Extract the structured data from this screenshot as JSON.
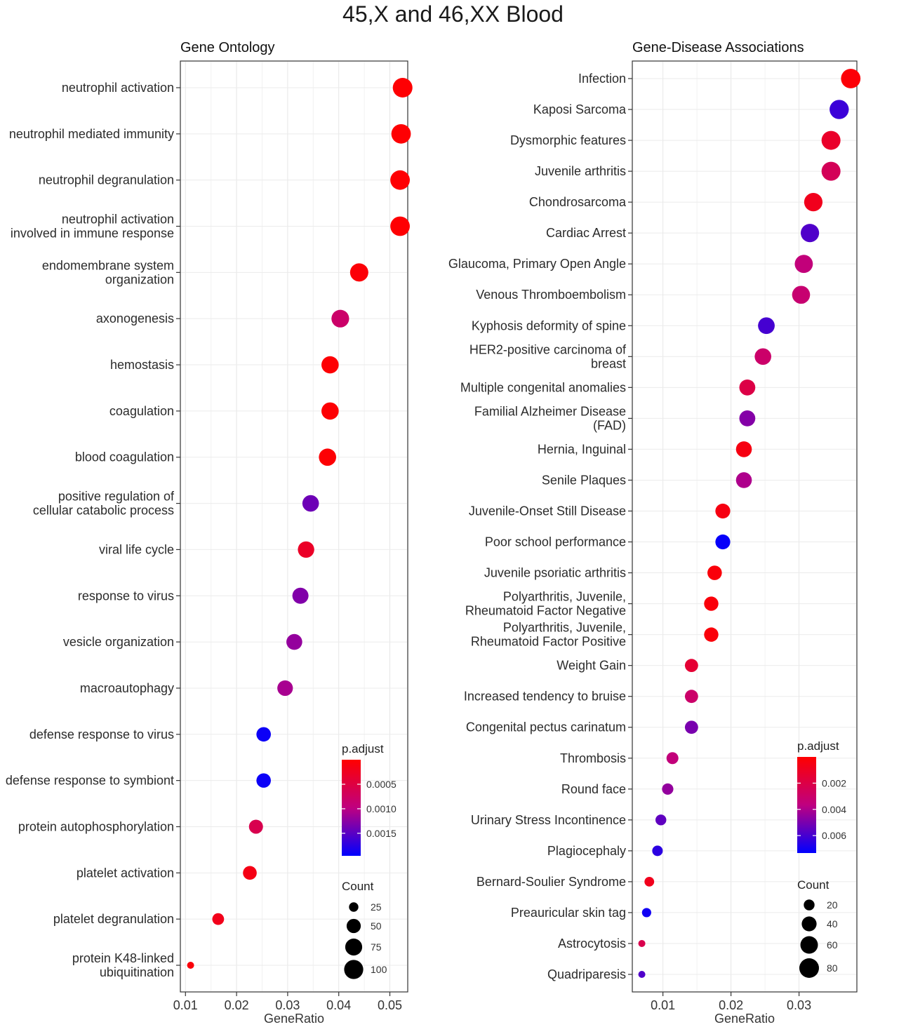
{
  "title": "45,X and 46,XX Blood",
  "chart_data": [
    {
      "type": "scatter",
      "title": "Gene Ontology",
      "xlabel": "GeneRatio",
      "ylabel": "",
      "xlim": [
        0.009,
        0.0535
      ],
      "xticks": [
        0.01,
        0.02,
        0.03,
        0.04,
        0.05
      ],
      "xtick_labels": [
        "0.01",
        "0.02",
        "0.03",
        "0.04",
        "0.05"
      ],
      "grid": true,
      "categories": [
        [
          "neutrophil activation"
        ],
        [
          "neutrophil mediated immunity"
        ],
        [
          "neutrophil degranulation"
        ],
        [
          "neutrophil activation",
          "involved in immune response"
        ],
        [
          "endomembrane system",
          "organization"
        ],
        [
          "axonogenesis"
        ],
        [
          "hemostasis"
        ],
        [
          "coagulation"
        ],
        [
          "blood coagulation"
        ],
        [
          "positive regulation of",
          "cellular catabolic process"
        ],
        [
          "viral life cycle"
        ],
        [
          "response to virus"
        ],
        [
          "vesicle organization"
        ],
        [
          "macroautophagy"
        ],
        [
          "defense response to virus"
        ],
        [
          "defense response to symbiont"
        ],
        [
          "protein autophosphorylation"
        ],
        [
          "platelet activation"
        ],
        [
          "platelet degranulation"
        ],
        [
          "protein K48-linked",
          "ubiquitination"
        ]
      ],
      "gene_ratio": [
        0.0525,
        0.0522,
        0.052,
        0.052,
        0.044,
        0.0403,
        0.0383,
        0.0383,
        0.0378,
        0.0345,
        0.0336,
        0.0325,
        0.0313,
        0.0295,
        0.0253,
        0.0253,
        0.0238,
        0.0226,
        0.0164,
        0.011
      ],
      "count": [
        108,
        107,
        106,
        106,
        90,
        83,
        79,
        79,
        78,
        71,
        69,
        67,
        64,
        61,
        52,
        52,
        49,
        46,
        34,
        22
      ],
      "p_adjust": [
        2e-05,
        2e-05,
        2e-05,
        2e-05,
        5e-05,
        0.0008,
        3e-05,
        3e-05,
        3e-05,
        0.0014,
        0.0003,
        0.0013,
        0.0012,
        0.0011,
        0.0019,
        0.0019,
        0.0006,
        0.00015,
        0.0002,
        8e-05
      ],
      "legend_color": {
        "title": "p.adjust",
        "low_color": "#ff0000",
        "high_color": "#0000ff",
        "range": [
          0.0,
          0.00196
        ],
        "ticks": [
          0.0005,
          0.001,
          0.0015
        ],
        "tick_labels": [
          "0.0005",
          "0.0010",
          "0.0015"
        ]
      },
      "legend_size": {
        "title": "Count",
        "values": [
          25,
          50,
          75,
          100
        ],
        "labels": [
          "25",
          "50",
          "75",
          "100"
        ]
      },
      "legend_position": "bottom-right"
    },
    {
      "type": "scatter",
      "title": "Gene-Disease Associations",
      "xlabel": "GeneRatio",
      "ylabel": "",
      "xlim": [
        0.0055,
        0.0385
      ],
      "xticks": [
        0.01,
        0.02,
        0.03
      ],
      "xtick_labels": [
        "0.01",
        "0.02",
        "0.03"
      ],
      "grid": true,
      "categories": [
        [
          "Infection"
        ],
        [
          "Kaposi Sarcoma"
        ],
        [
          "Dysmorphic features"
        ],
        [
          "Juvenile arthritis"
        ],
        [
          "Chondrosarcoma"
        ],
        [
          "Cardiac Arrest"
        ],
        [
          "Glaucoma, Primary Open Angle"
        ],
        [
          "Venous Thromboembolism"
        ],
        [
          "Kyphosis deformity of spine"
        ],
        [
          "HER2-positive carcinoma of",
          "breast"
        ],
        [
          "Multiple congenital anomalies"
        ],
        [
          "Familial Alzheimer Disease",
          "(FAD)"
        ],
        [
          "Hernia, Inguinal"
        ],
        [
          "Senile Plaques"
        ],
        [
          "Juvenile-Onset Still Disease"
        ],
        [
          "Poor school performance"
        ],
        [
          "Juvenile psoriatic arthritis"
        ],
        [
          "Polyarthritis, Juvenile,",
          "Rheumatoid Factor Negative"
        ],
        [
          "Polyarthritis, Juvenile,",
          "Rheumatoid Factor Positive"
        ],
        [
          "Weight Gain"
        ],
        [
          "Increased tendency to bruise"
        ],
        [
          "Congenital pectus carinatum"
        ],
        [
          "Thrombosis"
        ],
        [
          "Round face"
        ],
        [
          "Urinary Stress Incontinence"
        ],
        [
          "Plagiocephaly"
        ],
        [
          "Bernard-Soulier Syndrome"
        ],
        [
          "Preauricular skin tag"
        ],
        [
          "Astrocytosis"
        ],
        [
          "Quadriparesis"
        ]
      ],
      "gene_ratio": [
        0.0376,
        0.0359,
        0.0347,
        0.0347,
        0.0321,
        0.0316,
        0.0307,
        0.0303,
        0.0252,
        0.0247,
        0.0224,
        0.0224,
        0.0219,
        0.0219,
        0.0188,
        0.0188,
        0.0176,
        0.0171,
        0.0171,
        0.0142,
        0.0142,
        0.0142,
        0.0114,
        0.0107,
        0.0097,
        0.0092,
        0.008,
        0.0076,
        0.0069,
        0.0069
      ],
      "count": [
        79,
        76,
        73,
        73,
        68,
        67,
        65,
        64,
        53,
        52,
        47,
        47,
        46,
        46,
        40,
        40,
        37,
        36,
        36,
        30,
        30,
        30,
        24,
        22,
        20,
        19,
        17,
        16,
        14,
        14
      ],
      "p_adjust": [
        0.0002,
        0.0062,
        0.0012,
        0.0025,
        0.0008,
        0.0058,
        0.0035,
        0.0032,
        0.006,
        0.003,
        0.002,
        0.0048,
        0.0005,
        0.004,
        0.0005,
        0.0072,
        0.0003,
        0.0003,
        0.0003,
        0.0015,
        0.003,
        0.005,
        0.0035,
        0.0045,
        0.0055,
        0.0065,
        0.0008,
        0.007,
        0.0022,
        0.0058
      ],
      "legend_color": {
        "title": "p.adjust",
        "low_color": "#ff0000",
        "high_color": "#0000ff",
        "range": [
          0.0,
          0.00733
        ],
        "ticks": [
          0.002,
          0.004,
          0.006
        ],
        "tick_labels": [
          "0.002",
          "0.004",
          "0.006"
        ]
      },
      "legend_size": {
        "title": "Count",
        "values": [
          20,
          40,
          60,
          80
        ],
        "labels": [
          "20",
          "40",
          "60",
          "80"
        ]
      },
      "legend_position": "bottom-right"
    }
  ]
}
